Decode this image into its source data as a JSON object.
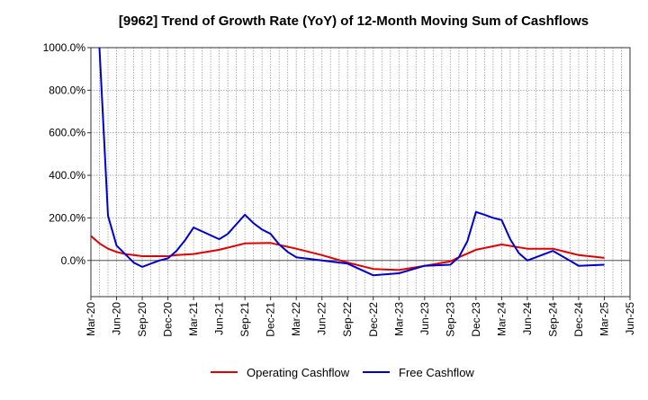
{
  "chart_data": {
    "type": "line",
    "title": "[9962]  Trend of Growth Rate (YoY) of 12-Month Moving Sum of Cashflows",
    "xlabel": "",
    "ylabel": "",
    "ylim": [
      -170,
      1000
    ],
    "y_ticks": [
      0,
      200,
      400,
      600,
      800,
      1000
    ],
    "y_tick_labels": [
      "0.0%",
      "200.0%",
      "400.0%",
      "600.0%",
      "800.0%",
      "1000.0%"
    ],
    "x_ticks": [
      "2020-03",
      "2020-06",
      "2020-09",
      "2020-12",
      "2021-03",
      "2021-06",
      "2021-09",
      "2021-12",
      "2022-03",
      "2022-06",
      "2022-09",
      "2022-12",
      "2023-03",
      "2023-06",
      "2023-09",
      "2023-12",
      "2024-03",
      "2024-06",
      "2024-09",
      "2024-12",
      "2025-03",
      "2025-06"
    ],
    "x_tick_labels": [
      "Mar-20",
      "Jun-20",
      "Sep-20",
      "Dec-20",
      "Mar-21",
      "Jun-21",
      "Sep-21",
      "Dec-21",
      "Mar-22",
      "Jun-22",
      "Sep-22",
      "Dec-22",
      "Mar-23",
      "Jun-23",
      "Sep-23",
      "Dec-23",
      "Mar-24",
      "Jun-24",
      "Sep-24",
      "Dec-24",
      "Mar-25",
      "Jun-25"
    ],
    "grid": "vertical-monthly-dotted",
    "legend": "bottom",
    "series": [
      {
        "name": "Operating Cashflow",
        "color": "#e00000",
        "points": [
          [
            "2020-03",
            115
          ],
          [
            "2020-04",
            80
          ],
          [
            "2020-05",
            55
          ],
          [
            "2020-06",
            40
          ],
          [
            "2020-07",
            30
          ],
          [
            "2020-08",
            25
          ],
          [
            "2020-09",
            20
          ],
          [
            "2020-10",
            20
          ],
          [
            "2020-11",
            20
          ],
          [
            "2020-12",
            20
          ],
          [
            "2021-01",
            25
          ],
          [
            "2021-03",
            30
          ],
          [
            "2021-06",
            50
          ],
          [
            "2021-09",
            80
          ],
          [
            "2021-12",
            82
          ],
          [
            "2022-03",
            55
          ],
          [
            "2022-06",
            25
          ],
          [
            "2022-09",
            -10
          ],
          [
            "2022-12",
            -40
          ],
          [
            "2023-03",
            -45
          ],
          [
            "2023-06",
            -25
          ],
          [
            "2023-09",
            -5
          ],
          [
            "2023-10",
            15
          ],
          [
            "2023-12",
            50
          ],
          [
            "2024-03",
            75
          ],
          [
            "2024-06",
            55
          ],
          [
            "2024-09",
            55
          ],
          [
            "2024-12",
            25
          ],
          [
            "2025-03",
            12
          ]
        ]
      },
      {
        "name": "Free Cashflow",
        "color": "#0000cc",
        "points": [
          [
            "2020-04",
            1000
          ],
          [
            "2020-05",
            210
          ],
          [
            "2020-06",
            70
          ],
          [
            "2020-07",
            30
          ],
          [
            "2020-08",
            -10
          ],
          [
            "2020-09",
            -30
          ],
          [
            "2020-10",
            -15
          ],
          [
            "2020-11",
            0
          ],
          [
            "2020-12",
            10
          ],
          [
            "2021-01",
            45
          ],
          [
            "2021-02",
            95
          ],
          [
            "2021-03",
            155
          ],
          [
            "2021-06",
            100
          ],
          [
            "2021-07",
            125
          ],
          [
            "2021-08",
            170
          ],
          [
            "2021-09",
            215
          ],
          [
            "2021-10",
            175
          ],
          [
            "2021-11",
            145
          ],
          [
            "2021-12",
            125
          ],
          [
            "2022-01",
            75
          ],
          [
            "2022-02",
            40
          ],
          [
            "2022-03",
            15
          ],
          [
            "2022-06",
            0
          ],
          [
            "2022-09",
            -15
          ],
          [
            "2022-12",
            -70
          ],
          [
            "2023-03",
            -60
          ],
          [
            "2023-06",
            -25
          ],
          [
            "2023-09",
            -20
          ],
          [
            "2023-10",
            15
          ],
          [
            "2023-11",
            90
          ],
          [
            "2023-12",
            228
          ],
          [
            "2024-01",
            215
          ],
          [
            "2024-02",
            200
          ],
          [
            "2024-03",
            190
          ],
          [
            "2024-04",
            100
          ],
          [
            "2024-05",
            35
          ],
          [
            "2024-06",
            0
          ],
          [
            "2024-09",
            45
          ],
          [
            "2024-12",
            -25
          ],
          [
            "2025-03",
            -20
          ]
        ]
      }
    ]
  }
}
